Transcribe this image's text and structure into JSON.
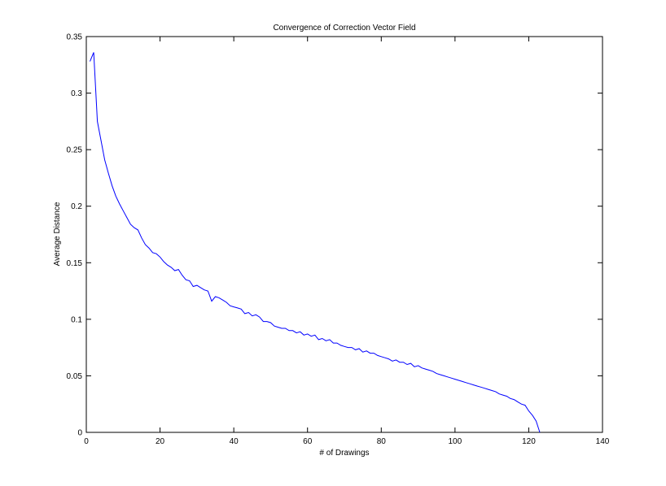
{
  "chart_data": {
    "type": "line",
    "title": "Convergence of Correction Vector Field",
    "xlabel": "# of Drawings",
    "ylabel": "Average Distance",
    "xlim": [
      0,
      140
    ],
    "ylim": [
      0,
      0.35
    ],
    "xticks": [
      0,
      20,
      40,
      60,
      80,
      100,
      120,
      140
    ],
    "yticks": [
      0,
      0.05,
      0.1,
      0.15,
      0.2,
      0.25,
      0.3,
      0.35
    ],
    "xtick_labels": [
      "0",
      "20",
      "40",
      "60",
      "80",
      "100",
      "120",
      "140"
    ],
    "ytick_labels": [
      "0",
      "0.05",
      "0.1",
      "0.15",
      "0.2",
      "0.25",
      "0.3",
      "0.35"
    ],
    "grid": false,
    "legend": "none",
    "series": [
      {
        "color": "#0000ff",
        "x": [
          1,
          2,
          3,
          4,
          5,
          6,
          7,
          8,
          9,
          10,
          11,
          12,
          13,
          14,
          15,
          16,
          17,
          18,
          19,
          20,
          21,
          22,
          23,
          24,
          25,
          26,
          27,
          28,
          29,
          30,
          31,
          32,
          33,
          34,
          35,
          36,
          37,
          38,
          39,
          40,
          41,
          42,
          43,
          44,
          45,
          46,
          47,
          48,
          49,
          50,
          51,
          52,
          53,
          54,
          55,
          56,
          57,
          58,
          59,
          60,
          61,
          62,
          63,
          64,
          65,
          66,
          67,
          68,
          69,
          70,
          71,
          72,
          73,
          74,
          75,
          76,
          77,
          78,
          79,
          80,
          81,
          82,
          83,
          84,
          85,
          86,
          87,
          88,
          89,
          90,
          91,
          92,
          93,
          94,
          95,
          96,
          97,
          98,
          99,
          100,
          101,
          102,
          103,
          104,
          105,
          106,
          107,
          108,
          109,
          110,
          111,
          112,
          113,
          114,
          115,
          116,
          117,
          118,
          119,
          120,
          121,
          122,
          123
        ],
        "y": [
          0.328,
          0.336,
          0.275,
          0.258,
          0.241,
          0.229,
          0.218,
          0.209,
          0.202,
          0.196,
          0.19,
          0.184,
          0.181,
          0.179,
          0.172,
          0.166,
          0.163,
          0.159,
          0.158,
          0.155,
          0.151,
          0.148,
          0.146,
          0.143,
          0.144,
          0.139,
          0.135,
          0.134,
          0.129,
          0.13,
          0.128,
          0.126,
          0.125,
          0.116,
          0.12,
          0.119,
          0.117,
          0.115,
          0.112,
          0.111,
          0.11,
          0.109,
          0.105,
          0.106,
          0.103,
          0.104,
          0.102,
          0.098,
          0.098,
          0.097,
          0.094,
          0.093,
          0.092,
          0.092,
          0.09,
          0.09,
          0.088,
          0.089,
          0.086,
          0.087,
          0.085,
          0.086,
          0.082,
          0.083,
          0.081,
          0.082,
          0.079,
          0.079,
          0.077,
          0.076,
          0.075,
          0.075,
          0.073,
          0.074,
          0.071,
          0.072,
          0.07,
          0.07,
          0.068,
          0.067,
          0.066,
          0.065,
          0.063,
          0.064,
          0.062,
          0.062,
          0.06,
          0.061,
          0.058,
          0.059,
          0.057,
          0.056,
          0.055,
          0.054,
          0.052,
          0.051,
          0.05,
          0.049,
          0.048,
          0.047,
          0.046,
          0.045,
          0.044,
          0.043,
          0.042,
          0.041,
          0.04,
          0.039,
          0.038,
          0.037,
          0.036,
          0.034,
          0.033,
          0.032,
          0.03,
          0.029,
          0.027,
          0.025,
          0.024,
          0.019,
          0.015,
          0.01,
          0.0
        ]
      }
    ]
  }
}
